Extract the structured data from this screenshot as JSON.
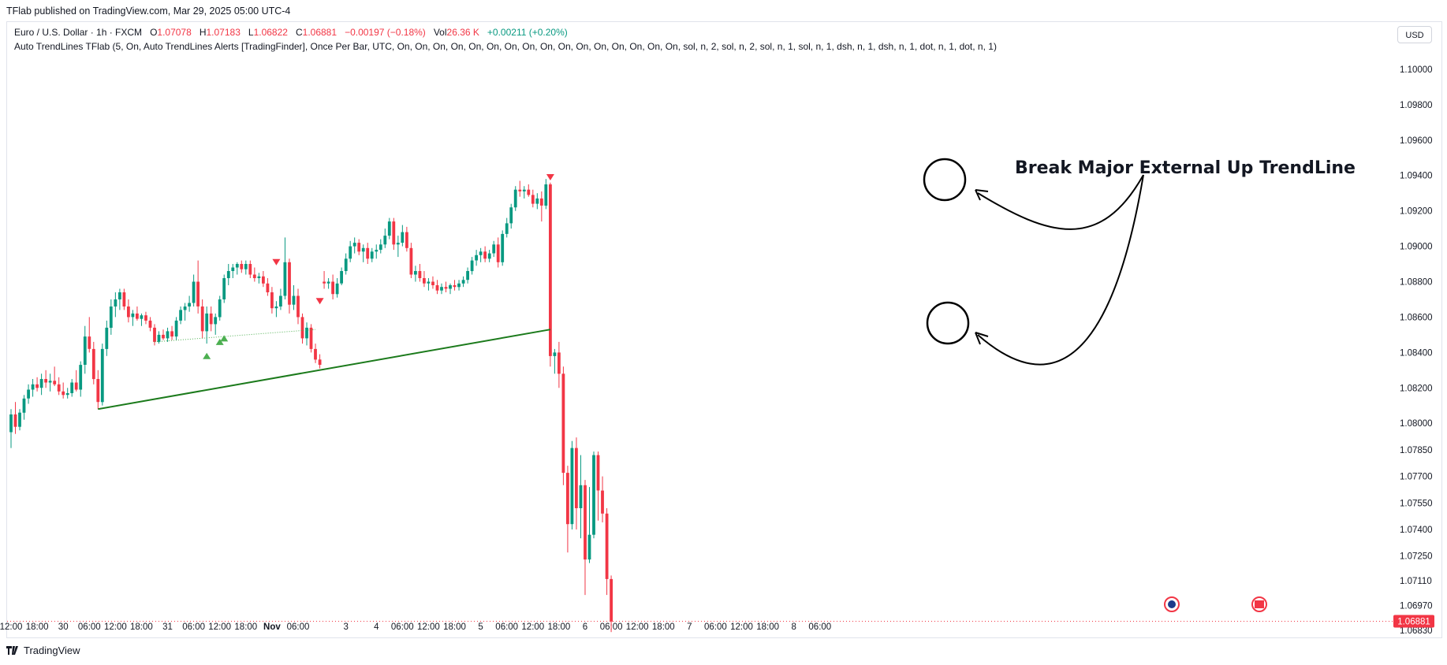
{
  "header": {
    "published": "TFlab published on TradingView.com, Mar 29, 2025 05:00 UTC-4",
    "symbol": "Euro / U.S. Dollar · 1h · FXCM",
    "o_label": "O",
    "o_value": "1.07078",
    "h_label": "H",
    "h_value": "1.07183",
    "l_label": "L",
    "l_value": "1.06822",
    "c_label": "C",
    "c_value": "1.06881",
    "change": "−0.00197 (−0.18%)",
    "vol_label": "Vol",
    "vol_value": "26.36 K",
    "vol_change": "+0.00211 (+0.20%)",
    "indicator": "Auto TrendLines TFlab (5, On, Auto TrendLines Alerts [TradingFinder], Once Per Bar, UTC, On, On, On, On, On, On, On, On, On, On, On, On, On, On, On, On, sol, n, 2, sol, n, 2, sol, n, 1, sol, n, 1, dsh, n, 1, dsh, n, 1, dot, n, 1, dot, n, 1)"
  },
  "currency_button": "USD",
  "brand": "TradingView",
  "colors": {
    "up": "#089981",
    "down": "#f23645",
    "trend": "#1b7a1b",
    "dotted": "#4caf50",
    "markerUp": "#4caf50",
    "markerDown": "#f23645"
  },
  "chart_data": {
    "type": "candlestick",
    "symbol": "EURUSD",
    "timeframe": "1h",
    "ylim": [
      1.0683,
      1.1008
    ],
    "y_ticks": [
      "1.10000",
      "1.09800",
      "1.09600",
      "1.09400",
      "1.09200",
      "1.09000",
      "1.08800",
      "1.08600",
      "1.08400",
      "1.08200",
      "1.08000",
      "1.07850",
      "1.07700",
      "1.07550",
      "1.07400",
      "1.07250",
      "1.07110",
      "1.06970",
      "1.06830"
    ],
    "last_price": "1.06881",
    "x_ticks": [
      {
        "label": "12:00",
        "i": 0
      },
      {
        "label": "18:00",
        "i": 6
      },
      {
        "label": "30",
        "i": 12
      },
      {
        "label": "06:00",
        "i": 18
      },
      {
        "label": "12:00",
        "i": 24
      },
      {
        "label": "18:00",
        "i": 30
      },
      {
        "label": "31",
        "i": 36
      },
      {
        "label": "06:00",
        "i": 42
      },
      {
        "label": "12:00",
        "i": 48
      },
      {
        "label": "18:00",
        "i": 54
      },
      {
        "label": "Nov",
        "i": 60,
        "bold": true
      },
      {
        "label": "06:00",
        "i": 66
      },
      {
        "label": "3",
        "i": 77
      },
      {
        "label": "4",
        "i": 84
      },
      {
        "label": "06:00",
        "i": 90
      },
      {
        "label": "12:00",
        "i": 96
      },
      {
        "label": "18:00",
        "i": 102
      },
      {
        "label": "5",
        "i": 108
      },
      {
        "label": "06:00",
        "i": 114
      },
      {
        "label": "12:00",
        "i": 120
      },
      {
        "label": "18:00",
        "i": 126
      },
      {
        "label": "6",
        "i": 132
      },
      {
        "label": "06:00",
        "i": 138
      },
      {
        "label": "12:00",
        "i": 144
      },
      {
        "label": "18:00",
        "i": 150
      },
      {
        "label": "7",
        "i": 156
      },
      {
        "label": "06:00",
        "i": 162
      },
      {
        "label": "12:00",
        "i": 168
      },
      {
        "label": "18:00",
        "i": 174
      },
      {
        "label": "8",
        "i": 180
      },
      {
        "label": "06:00",
        "i": 186
      }
    ],
    "candles": [
      [
        1.0795,
        1.0808,
        1.0786,
        1.0805
      ],
      [
        1.0805,
        1.0812,
        1.0794,
        1.0798
      ],
      [
        1.0798,
        1.0808,
        1.0796,
        1.0806
      ],
      [
        1.0806,
        1.0816,
        1.0802,
        1.0814
      ],
      [
        1.0814,
        1.0822,
        1.0811,
        1.0819
      ],
      [
        1.0819,
        1.0825,
        1.0815,
        1.0822
      ],
      [
        1.0822,
        1.0826,
        1.0818,
        1.082
      ],
      [
        1.082,
        1.0828,
        1.0816,
        1.0825
      ],
      [
        1.0825,
        1.083,
        1.082,
        1.0823
      ],
      [
        1.0823,
        1.0828,
        1.0818,
        1.0824
      ],
      [
        1.0824,
        1.0832,
        1.0821,
        1.0822
      ],
      [
        1.0822,
        1.0826,
        1.0816,
        1.0818
      ],
      [
        1.0818,
        1.0823,
        1.0814,
        1.0816
      ],
      [
        1.0816,
        1.082,
        1.0814,
        1.0817
      ],
      [
        1.0817,
        1.0825,
        1.0815,
        1.0823
      ],
      [
        1.0823,
        1.083,
        1.0818,
        1.0819
      ],
      [
        1.0819,
        1.0835,
        1.0815,
        1.0833
      ],
      [
        1.0833,
        1.0855,
        1.0828,
        1.0849
      ],
      [
        1.0849,
        1.086,
        1.084,
        1.0842
      ],
      [
        1.0842,
        1.0846,
        1.0822,
        1.0825
      ],
      [
        1.0825,
        1.083,
        1.0808,
        1.0812
      ],
      [
        1.0812,
        1.0845,
        1.081,
        1.0842
      ],
      [
        1.0842,
        1.0858,
        1.0838,
        1.0854
      ],
      [
        1.0854,
        1.087,
        1.085,
        1.0866
      ],
      [
        1.0866,
        1.0874,
        1.086,
        1.087
      ],
      [
        1.087,
        1.0876,
        1.0864,
        1.0874
      ],
      [
        1.0874,
        1.0876,
        1.0864,
        1.0866
      ],
      [
        1.0866,
        1.087,
        1.0857,
        1.086
      ],
      [
        1.086,
        1.0864,
        1.0855,
        1.0862
      ],
      [
        1.0862,
        1.0866,
        1.0858,
        1.0859
      ],
      [
        1.0859,
        1.0862,
        1.0855,
        1.0861
      ],
      [
        1.0861,
        1.0863,
        1.0856,
        1.0858
      ],
      [
        1.0858,
        1.086,
        1.0852,
        1.0854
      ],
      [
        1.0854,
        1.0856,
        1.0844,
        1.0846
      ],
      [
        1.0846,
        1.0852,
        1.0845,
        1.085
      ],
      [
        1.085,
        1.0853,
        1.0847,
        1.0848
      ],
      [
        1.0848,
        1.0854,
        1.0846,
        1.0852
      ],
      [
        1.0852,
        1.0855,
        1.0847,
        1.0849
      ],
      [
        1.0849,
        1.086,
        1.0847,
        1.0858
      ],
      [
        1.0858,
        1.0866,
        1.0856,
        1.0864
      ],
      [
        1.0864,
        1.0868,
        1.0858,
        1.0866
      ],
      [
        1.0866,
        1.0872,
        1.0863,
        1.0868
      ],
      [
        1.0868,
        1.0884,
        1.0866,
        1.088
      ],
      [
        1.088,
        1.0892,
        1.0862,
        1.0866
      ],
      [
        1.0866,
        1.087,
        1.0848,
        1.0852
      ],
      [
        1.0852,
        1.0866,
        1.0845,
        1.0862
      ],
      [
        1.0862,
        1.0866,
        1.0852,
        1.0856
      ],
      [
        1.0856,
        1.0862,
        1.085,
        1.086
      ],
      [
        1.086,
        1.0872,
        1.0858,
        1.087
      ],
      [
        1.087,
        1.0884,
        1.0868,
        1.0882
      ],
      [
        1.0882,
        1.089,
        1.0878,
        1.0886
      ],
      [
        1.0886,
        1.089,
        1.0882,
        1.0888
      ],
      [
        1.0888,
        1.0891,
        1.0884,
        1.089
      ],
      [
        1.089,
        1.0892,
        1.0885,
        1.0887
      ],
      [
        1.0887,
        1.0892,
        1.0884,
        1.089
      ],
      [
        1.089,
        1.0892,
        1.0882,
        1.0884
      ],
      [
        1.0884,
        1.0888,
        1.088,
        1.0882
      ],
      [
        1.0882,
        1.0885,
        1.0879,
        1.0883
      ],
      [
        1.0883,
        1.0886,
        1.0877,
        1.0879
      ],
      [
        1.0879,
        1.0882,
        1.0872,
        1.0874
      ],
      [
        1.0874,
        1.0877,
        1.0862,
        1.0865
      ],
      [
        1.0865,
        1.0869,
        1.086,
        1.0866
      ],
      [
        1.0866,
        1.0876,
        1.0864,
        1.0872
      ],
      [
        1.0872,
        1.0905,
        1.087,
        1.0891
      ],
      [
        1.0891,
        1.0893,
        1.0862,
        1.0867
      ],
      [
        1.0867,
        1.0878,
        1.0864,
        1.0872
      ],
      [
        1.0872,
        1.0876,
        1.0856,
        1.086
      ],
      [
        1.086,
        1.0862,
        1.0845,
        1.0848
      ],
      [
        1.0848,
        1.0857,
        1.0844,
        1.0854
      ],
      [
        1.0854,
        1.0856,
        1.084,
        1.0842
      ],
      [
        1.0842,
        1.0845,
        1.0834,
        1.0836
      ],
      [
        1.0836,
        1.0839,
        1.0831,
        1.0833
      ],
      [
        1.088,
        1.0886,
        1.0876,
        1.0879
      ],
      [
        1.0879,
        1.0882,
        1.0876,
        1.088
      ],
      [
        1.088,
        1.0884,
        1.087,
        1.0873
      ],
      [
        1.0873,
        1.0882,
        1.0871,
        1.0879
      ],
      [
        1.0879,
        1.0888,
        1.0878,
        1.0886
      ],
      [
        1.0886,
        1.0896,
        1.0884,
        1.0893
      ],
      [
        1.0893,
        1.0903,
        1.0891,
        1.09
      ],
      [
        1.09,
        1.0905,
        1.0896,
        1.0902
      ],
      [
        1.0902,
        1.0904,
        1.0895,
        1.0897
      ],
      [
        1.0897,
        1.0901,
        1.0891,
        1.0899
      ],
      [
        1.0899,
        1.0902,
        1.089,
        1.0893
      ],
      [
        1.0893,
        1.0899,
        1.0891,
        1.0897
      ],
      [
        1.0897,
        1.0901,
        1.0893,
        1.0898
      ],
      [
        1.0898,
        1.0904,
        1.0896,
        1.0901
      ],
      [
        1.0901,
        1.091,
        1.0899,
        1.0906
      ],
      [
        1.0906,
        1.0916,
        1.0904,
        1.0914
      ],
      [
        1.0914,
        1.0916,
        1.0898,
        1.0901
      ],
      [
        1.0901,
        1.0906,
        1.0894,
        1.0902
      ],
      [
        1.0902,
        1.0912,
        1.09,
        1.0908
      ],
      [
        1.0908,
        1.0911,
        1.0897,
        1.0899
      ],
      [
        1.0899,
        1.0902,
        1.0882,
        1.0884
      ],
      [
        1.0884,
        1.0889,
        1.088,
        1.0886
      ],
      [
        1.0886,
        1.089,
        1.088,
        1.0882
      ],
      [
        1.0882,
        1.0886,
        1.0877,
        1.0879
      ],
      [
        1.0879,
        1.0882,
        1.0875,
        1.088
      ],
      [
        1.088,
        1.0883,
        1.0876,
        1.0878
      ],
      [
        1.0878,
        1.0881,
        1.0873,
        1.0875
      ],
      [
        1.0875,
        1.0879,
        1.0873,
        1.0877
      ],
      [
        1.0877,
        1.088,
        1.0874,
        1.0876
      ],
      [
        1.0876,
        1.0879,
        1.0873,
        1.0878
      ],
      [
        1.0878,
        1.0881,
        1.0875,
        1.0877
      ],
      [
        1.0877,
        1.0881,
        1.0875,
        1.0879
      ],
      [
        1.0879,
        1.0883,
        1.0877,
        1.0881
      ],
      [
        1.0881,
        1.0888,
        1.0879,
        1.0886
      ],
      [
        1.0886,
        1.0894,
        1.0884,
        1.0892
      ],
      [
        1.0892,
        1.0898,
        1.0889,
        1.0895
      ],
      [
        1.0895,
        1.0899,
        1.0891,
        1.0897
      ],
      [
        1.0897,
        1.09,
        1.0891,
        1.0893
      ],
      [
        1.0893,
        1.0898,
        1.0891,
        1.0896
      ],
      [
        1.0896,
        1.0903,
        1.0894,
        1.0901
      ],
      [
        1.0901,
        1.0905,
        1.0888,
        1.0891
      ],
      [
        1.0891,
        1.0909,
        1.0889,
        1.0907
      ],
      [
        1.0907,
        1.0916,
        1.0905,
        1.0913
      ],
      [
        1.0913,
        1.0924,
        1.091,
        1.0922
      ],
      [
        1.0922,
        1.0934,
        1.092,
        1.0932
      ],
      [
        1.0932,
        1.0937,
        1.0928,
        1.0931
      ],
      [
        1.0931,
        1.0934,
        1.0927,
        1.0932
      ],
      [
        1.0932,
        1.0935,
        1.0928,
        1.0929
      ],
      [
        1.0929,
        1.0932,
        1.0922,
        1.0924
      ],
      [
        1.0924,
        1.093,
        1.0921,
        1.0927
      ],
      [
        1.0927,
        1.0931,
        1.0914,
        1.0923
      ],
      [
        1.0923,
        1.0938,
        1.0921,
        1.0935
      ],
      [
        1.0935,
        1.0936,
        1.0832,
        1.0838
      ],
      [
        1.0838,
        1.0842,
        1.0828,
        1.084
      ],
      [
        1.084,
        1.0846,
        1.082,
        1.0828
      ],
      [
        1.0828,
        1.0832,
        1.0765,
        1.0772
      ],
      [
        1.0772,
        1.0776,
        1.0727,
        1.0743
      ],
      [
        1.0743,
        1.079,
        1.074,
        1.0786
      ],
      [
        1.0786,
        1.0792,
        1.074,
        1.0752
      ],
      [
        1.0752,
        1.0782,
        1.0735,
        1.0765
      ],
      [
        1.0765,
        1.0768,
        1.0703,
        1.0723
      ],
      [
        1.0723,
        1.0764,
        1.0721,
        1.0737
      ],
      [
        1.0737,
        1.0784,
        1.0735,
        1.0782
      ],
      [
        1.0782,
        1.0784,
        1.0745,
        1.0762
      ],
      [
        1.0762,
        1.077,
        1.0744,
        1.0749
      ],
      [
        1.0749,
        1.0752,
        1.0703,
        1.0712
      ],
      [
        1.0712,
        1.0714,
        1.0682,
        1.0688
      ]
    ],
    "trendlines": [
      {
        "name": "major-external-up-trendline",
        "style": "solid",
        "from": {
          "i": 20,
          "y": 1.0808
        },
        "to": {
          "i": 124,
          "y": 1.0853
        }
      },
      {
        "name": "minor-up-trendline",
        "style": "dotted",
        "from": {
          "i": 33,
          "y": 1.0846
        },
        "to": {
          "i": 70,
          "y": 1.0853
        }
      }
    ],
    "signals": [
      {
        "type": "up",
        "i": 45,
        "y": 1.0838
      },
      {
        "type": "up",
        "i": 48,
        "y": 1.0846
      },
      {
        "type": "up",
        "i": 49,
        "y": 1.0848
      },
      {
        "type": "down",
        "i": 61,
        "y": 1.0891
      },
      {
        "type": "down",
        "i": 71,
        "y": 1.0869
      },
      {
        "type": "down",
        "i": 124,
        "y": 1.0939
      }
    ],
    "annotation": {
      "text": "Break Major External Up TrendLine"
    }
  }
}
